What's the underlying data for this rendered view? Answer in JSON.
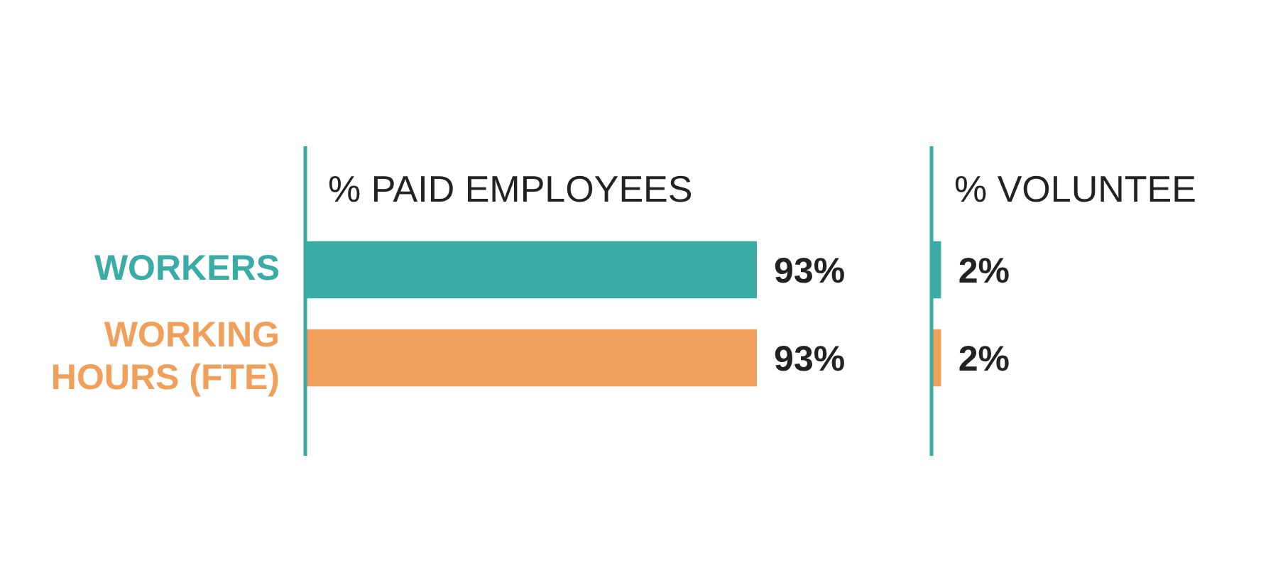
{
  "chart_data": [
    {
      "type": "bar",
      "orientation": "horizontal",
      "title": "% PAID EMPLOYEES",
      "categories": [
        "WORKERS",
        "WORKING HOURS (FTE)"
      ],
      "values": [
        93,
        93
      ],
      "value_labels": [
        "93%",
        "93%"
      ],
      "colors": [
        "#3aaba5",
        "#f0a05a"
      ],
      "tick_labels": "y",
      "grid": false,
      "legend": false
    },
    {
      "type": "bar",
      "orientation": "horizontal",
      "title": "% VOLUNTEE",
      "categories": [
        null,
        null
      ],
      "values": [
        2,
        2
      ],
      "value_labels": [
        "2%",
        "2%"
      ],
      "colors": [
        "#3aaba5",
        "#f0a05a"
      ],
      "tick_labels": false,
      "grid": false,
      "legend": false
    }
  ]
}
